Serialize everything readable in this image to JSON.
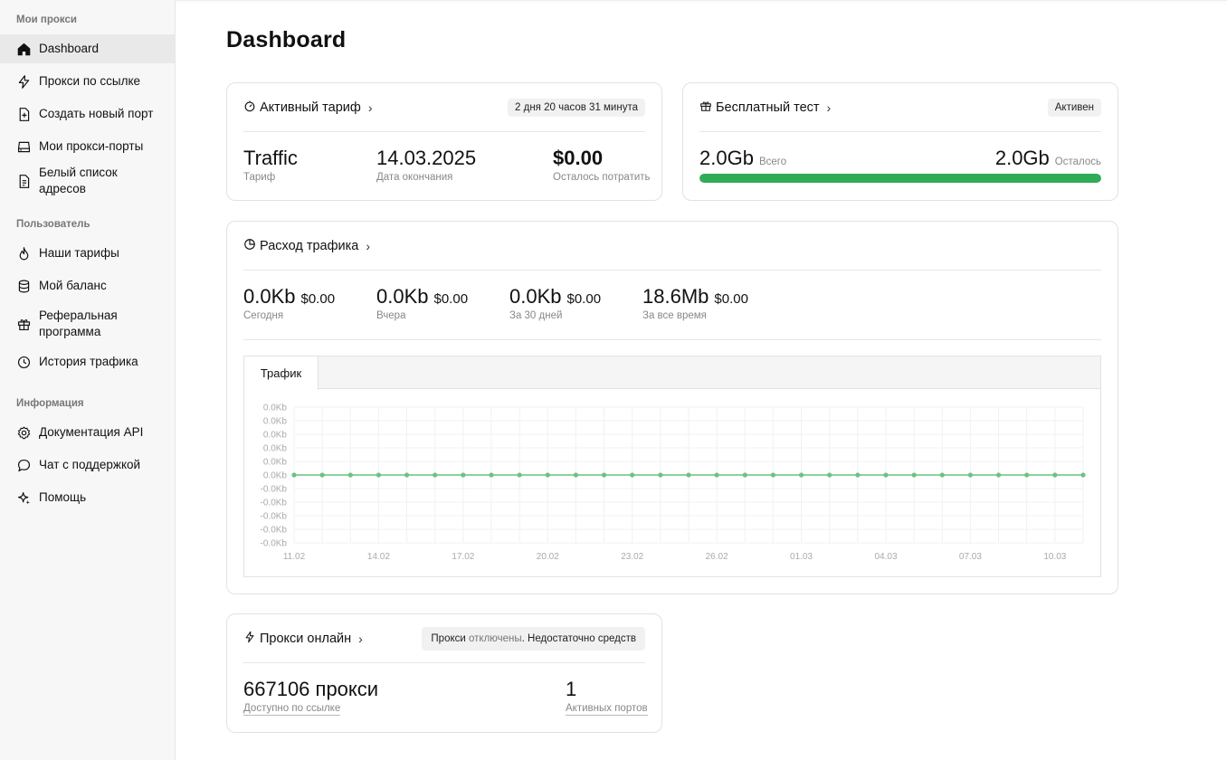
{
  "sidebar": {
    "sections": [
      {
        "title": "Мои прокси",
        "items": [
          {
            "label": "Dashboard",
            "icon": "home-icon",
            "active": true
          },
          {
            "label": "Прокси по ссылке",
            "icon": "lightning-icon"
          },
          {
            "label": "Создать новый порт",
            "icon": "file-plus-icon"
          },
          {
            "label": "Мои прокси-порты",
            "icon": "drive-icon"
          },
          {
            "label": "Белый список адресов",
            "icon": "file-list-icon"
          }
        ]
      },
      {
        "title": "Пользователь",
        "items": [
          {
            "label": "Наши тарифы",
            "icon": "flame-icon"
          },
          {
            "label": "Мой баланс",
            "icon": "database-icon"
          },
          {
            "label": "Реферальная программа",
            "icon": "gift-icon"
          },
          {
            "label": "История трафика",
            "icon": "clock-icon"
          }
        ]
      },
      {
        "title": "Информация",
        "items": [
          {
            "label": "Документация API",
            "icon": "gear-icon"
          },
          {
            "label": "Чат с поддержкой",
            "icon": "chat-icon"
          },
          {
            "label": "Помощь",
            "icon": "sparkle-icon"
          }
        ]
      }
    ]
  },
  "page": {
    "title": "Dashboard"
  },
  "tariff": {
    "title": "Активный тариф",
    "badge": "2 дня 20 часов 31 минута",
    "name": "Traffic",
    "name_label": "Тариф",
    "end_date": "14.03.2025",
    "end_date_label": "Дата окончания",
    "remaining": "$0.00",
    "remaining_label": "Осталось потратить"
  },
  "free_test": {
    "title": "Бесплатный тест",
    "badge": "Активен",
    "total": "2.0Gb",
    "total_label": "Всего",
    "left": "2.0Gb",
    "left_label": "Осталось",
    "progress": 1.0
  },
  "traffic": {
    "title": "Расход трафика",
    "stats": [
      {
        "volume": "0.0Kb",
        "cost": "$0.00",
        "label": "Сегодня"
      },
      {
        "volume": "0.0Kb",
        "cost": "$0.00",
        "label": "Вчера"
      },
      {
        "volume": "0.0Kb",
        "cost": "$0.00",
        "label": "За 30 дней"
      },
      {
        "volume": "18.6Mb",
        "cost": "$0.00",
        "label": "За все время"
      }
    ],
    "tab": "Трафик"
  },
  "chart_data": {
    "type": "line",
    "y_tick_labels": [
      "0.0Kb",
      "0.0Kb",
      "0.0Kb",
      "0.0Kb",
      "0.0Kb",
      "0.0Kb",
      "-0.0Kb",
      "-0.0Kb",
      "-0.0Kb",
      "-0.0Kb",
      "-0.0Kb"
    ],
    "x_tick_labels": [
      "11.02",
      "14.02",
      "17.02",
      "20.02",
      "23.02",
      "26.02",
      "01.03",
      "04.03",
      "07.03",
      "10.03"
    ],
    "point_count": 29,
    "values": [
      0,
      0,
      0,
      0,
      0,
      0,
      0,
      0,
      0,
      0,
      0,
      0,
      0,
      0,
      0,
      0,
      0,
      0,
      0,
      0,
      0,
      0,
      0,
      0,
      0,
      0,
      0,
      0,
      0
    ],
    "series_color": "#8fd19e",
    "grid": true
  },
  "online": {
    "title": "Прокси онлайн",
    "badge_pre": "Прокси ",
    "badge_mid": "отключены",
    "badge_post": ". Недостаточно средств",
    "count": "667106 прокси",
    "count_label": "Доступно по ссылке",
    "ports": "1",
    "ports_label": "Активных портов"
  }
}
